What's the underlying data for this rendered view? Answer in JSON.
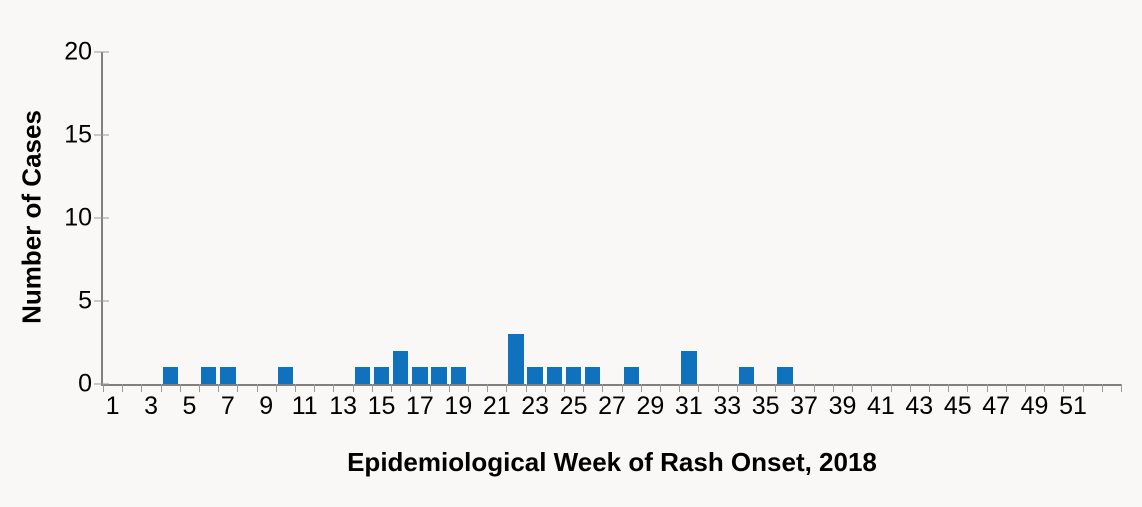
{
  "chart_data": {
    "type": "bar",
    "title": "",
    "xlabel": "Epidemiological Week of Rash Onset, 2018",
    "ylabel": "Number of Cases",
    "x_weeks": [
      1,
      2,
      3,
      4,
      5,
      6,
      7,
      8,
      9,
      10,
      11,
      12,
      13,
      14,
      15,
      16,
      17,
      18,
      19,
      20,
      21,
      22,
      23,
      24,
      25,
      26,
      27,
      28,
      29,
      30,
      31,
      32,
      33,
      34,
      35,
      36,
      37,
      38,
      39,
      40,
      41,
      42,
      43,
      44,
      45,
      46,
      47,
      48,
      49,
      50,
      51,
      52,
      53
    ],
    "values": [
      0,
      0,
      0,
      1,
      0,
      1,
      1,
      0,
      0,
      1,
      0,
      0,
      0,
      1,
      1,
      2,
      1,
      1,
      1,
      0,
      0,
      3,
      1,
      1,
      1,
      1,
      0,
      1,
      0,
      0,
      2,
      0,
      0,
      1,
      0,
      1,
      0,
      0,
      0,
      0,
      0,
      0,
      0,
      0,
      0,
      0,
      0,
      0,
      0,
      0,
      0,
      0,
      0
    ],
    "xtick_labels": [
      1,
      3,
      5,
      7,
      9,
      11,
      13,
      15,
      17,
      19,
      21,
      23,
      25,
      27,
      29,
      31,
      33,
      35,
      37,
      39,
      41,
      43,
      45,
      47,
      49,
      51
    ],
    "yticks": [
      0,
      5,
      10,
      15,
      20
    ],
    "ylim": [
      0,
      20
    ],
    "grid": false,
    "legend": "none",
    "bar_color": "#1072BC",
    "axis_color": "#808080",
    "tick_color": "#999999",
    "text_color": "#000000",
    "background": "#F9F8F6"
  }
}
